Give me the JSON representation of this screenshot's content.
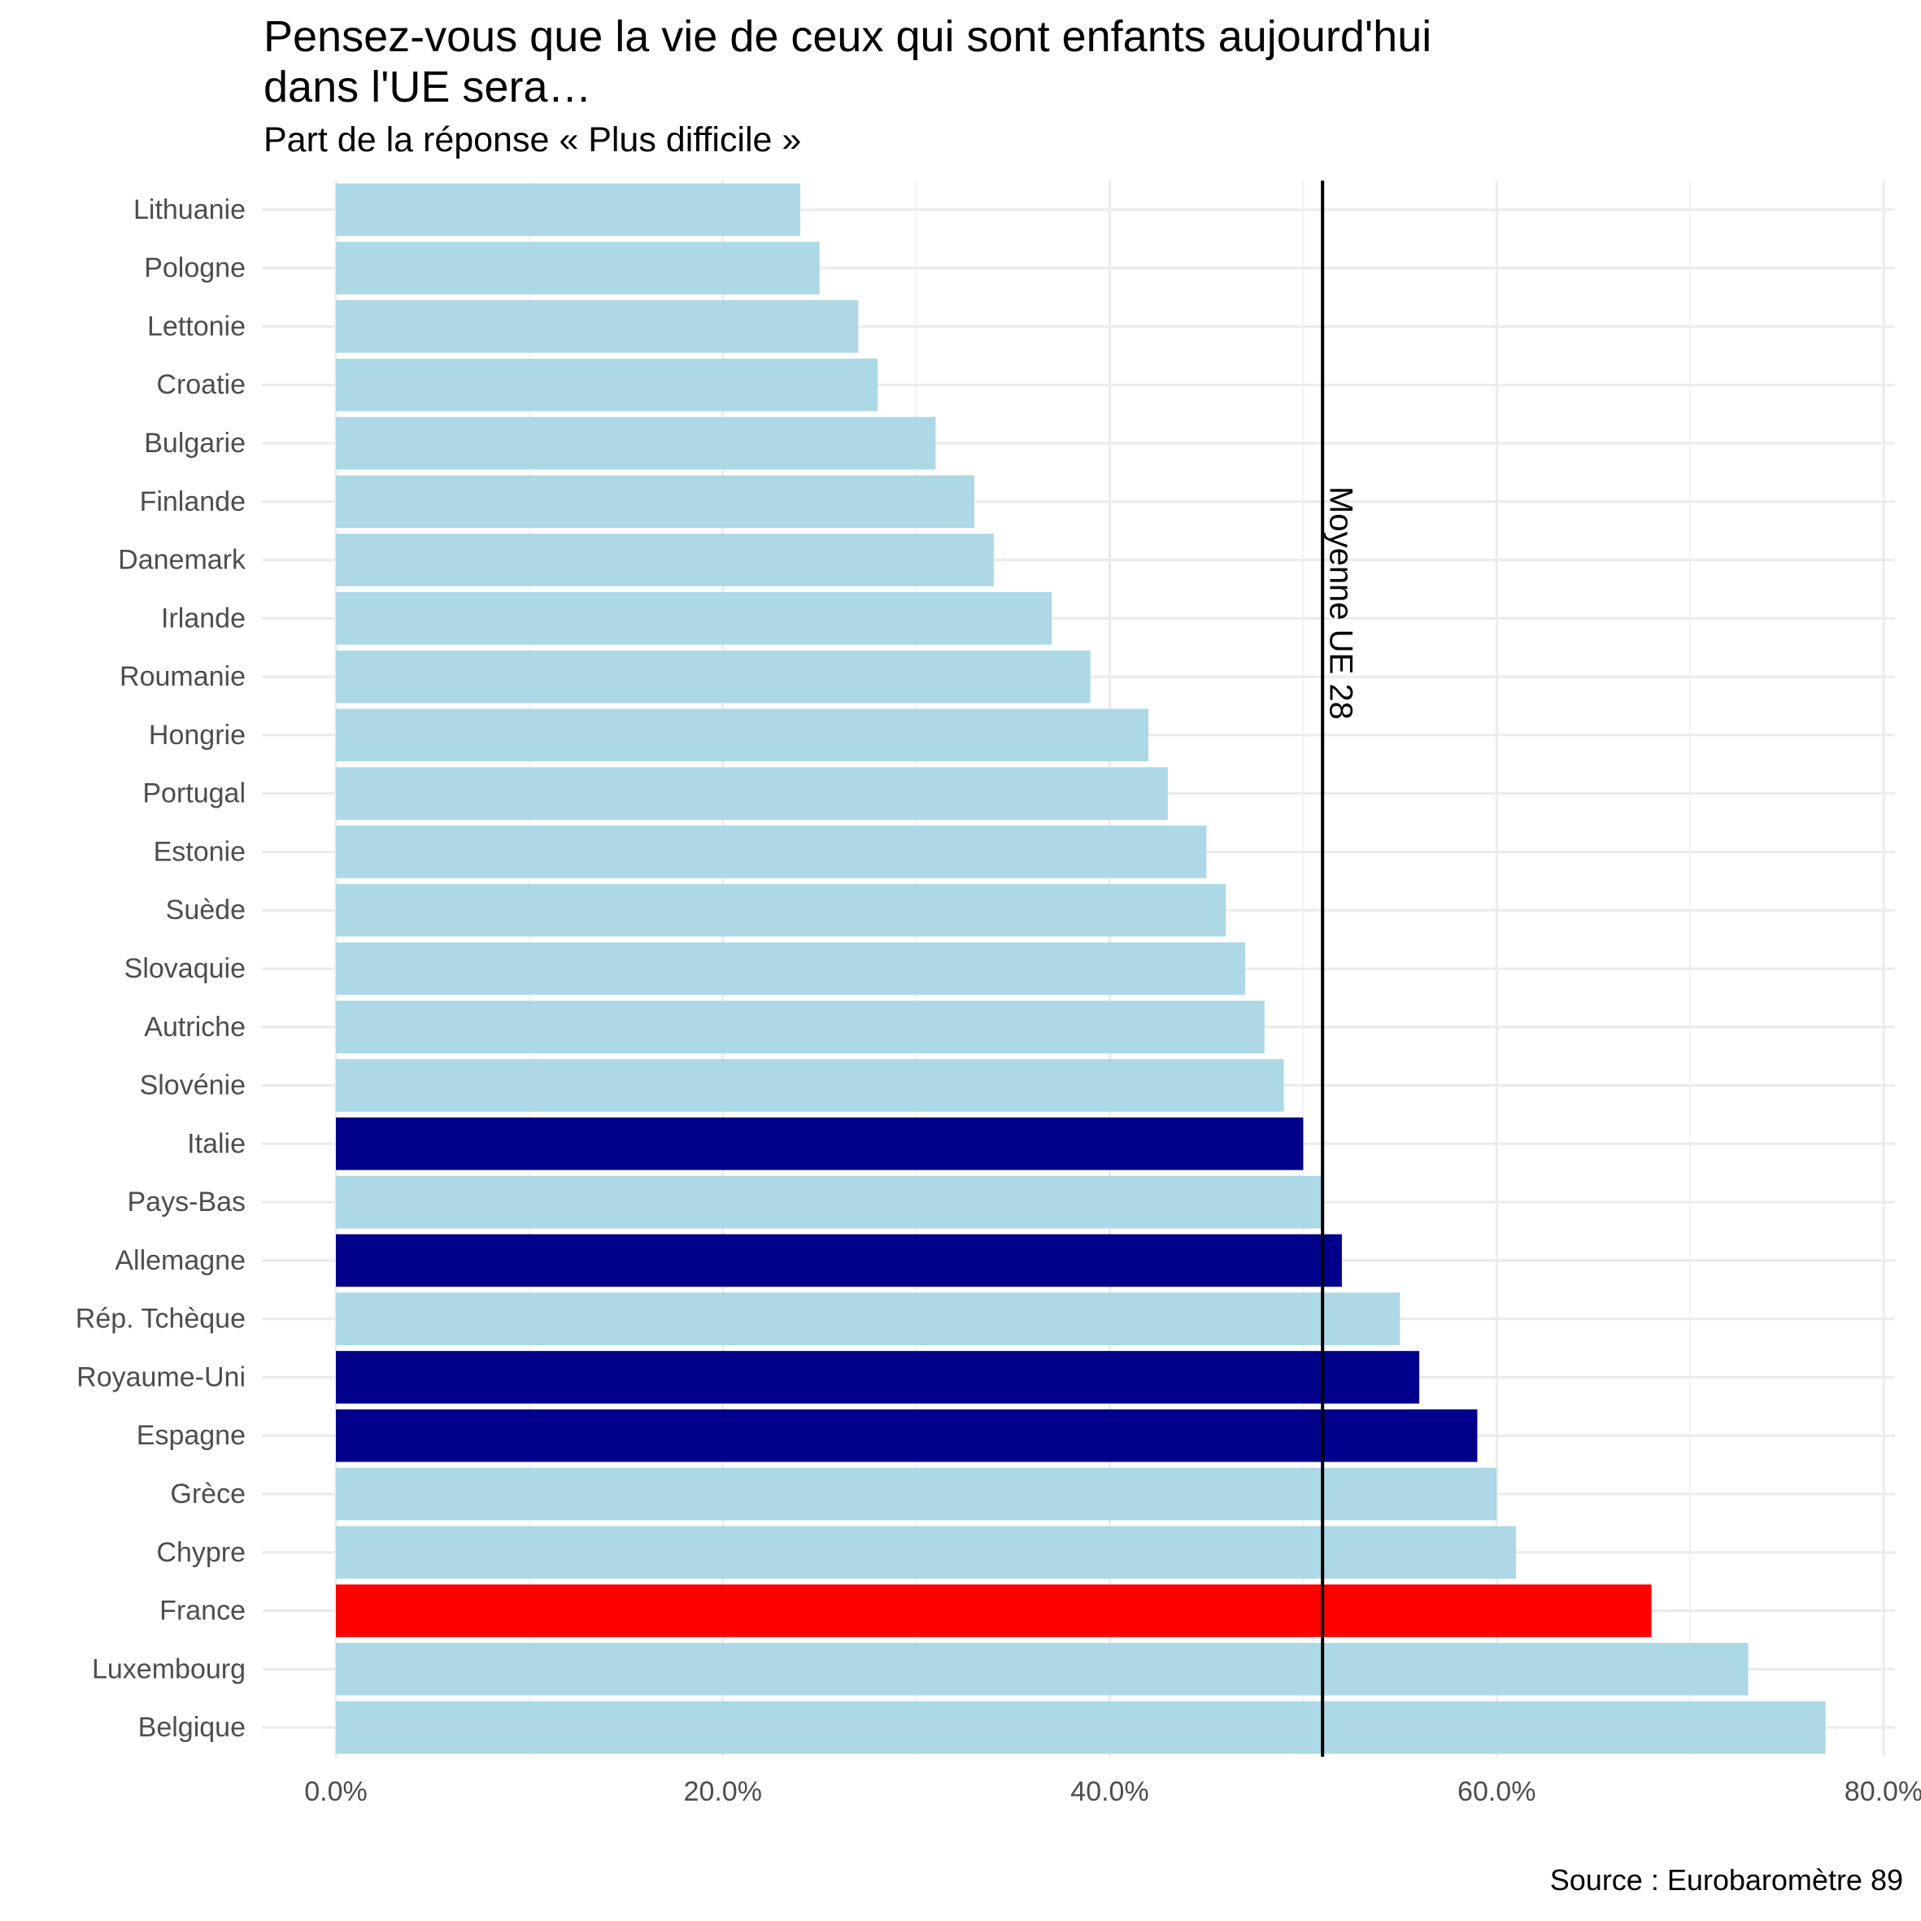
{
  "chart_data": {
    "type": "bar",
    "orientation": "horizontal",
    "title_lines": [
      "Pensez-vous que la vie de ceux qui sont enfants aujourd'hui",
      "dans l'UE sera…"
    ],
    "subtitle": "Part de la réponse « Plus difficile »",
    "source": "Source : Eurobaromètre 89",
    "xlim": [
      0,
      0.8
    ],
    "x_ticks": [
      {
        "value": 0,
        "label": "0.0%"
      },
      {
        "value": 0.2,
        "label": "20.0%"
      },
      {
        "value": 0.4,
        "label": "40.0%"
      },
      {
        "value": 0.6,
        "label": "60.0%"
      },
      {
        "value": 0.8,
        "label": "80.0%"
      }
    ],
    "x_minor_ticks": [
      0.1,
      0.3,
      0.5,
      0.7
    ],
    "grid": true,
    "reference_line": {
      "value": 0.51,
      "label": "Moyenne UE 28",
      "color": "#000000"
    },
    "colors": {
      "default": "#add8e6",
      "highlight": "#00008b",
      "france": "#ff0000"
    },
    "bars": [
      {
        "label": "Lithuanie",
        "value": 0.24,
        "color": "#add8e6"
      },
      {
        "label": "Pologne",
        "value": 0.25,
        "color": "#add8e6"
      },
      {
        "label": "Lettonie",
        "value": 0.27,
        "color": "#add8e6"
      },
      {
        "label": "Croatie",
        "value": 0.28,
        "color": "#add8e6"
      },
      {
        "label": "Bulgarie",
        "value": 0.31,
        "color": "#add8e6"
      },
      {
        "label": "Finlande",
        "value": 0.33,
        "color": "#add8e6"
      },
      {
        "label": "Danemark",
        "value": 0.34,
        "color": "#add8e6"
      },
      {
        "label": "Irlande",
        "value": 0.37,
        "color": "#add8e6"
      },
      {
        "label": "Roumanie",
        "value": 0.39,
        "color": "#add8e6"
      },
      {
        "label": "Hongrie",
        "value": 0.42,
        "color": "#add8e6"
      },
      {
        "label": "Portugal",
        "value": 0.43,
        "color": "#add8e6"
      },
      {
        "label": "Estonie",
        "value": 0.45,
        "color": "#add8e6"
      },
      {
        "label": "Suède",
        "value": 0.46,
        "color": "#add8e6"
      },
      {
        "label": "Slovaquie",
        "value": 0.47,
        "color": "#add8e6"
      },
      {
        "label": "Autriche",
        "value": 0.48,
        "color": "#add8e6"
      },
      {
        "label": "Slovénie",
        "value": 0.49,
        "color": "#add8e6"
      },
      {
        "label": "Italie",
        "value": 0.5,
        "color": "#00008b"
      },
      {
        "label": "Pays-Bas",
        "value": 0.51,
        "color": "#add8e6"
      },
      {
        "label": "Allemagne",
        "value": 0.52,
        "color": "#00008b"
      },
      {
        "label": "Rép. Tchèque",
        "value": 0.55,
        "color": "#add8e6"
      },
      {
        "label": "Royaume-Uni",
        "value": 0.56,
        "color": "#00008b"
      },
      {
        "label": "Espagne",
        "value": 0.59,
        "color": "#00008b"
      },
      {
        "label": "Grèce",
        "value": 0.6,
        "color": "#add8e6"
      },
      {
        "label": "Chypre",
        "value": 0.61,
        "color": "#add8e6"
      },
      {
        "label": "France",
        "value": 0.68,
        "color": "#ff0000"
      },
      {
        "label": "Luxembourg",
        "value": 0.73,
        "color": "#add8e6"
      },
      {
        "label": "Belgique",
        "value": 0.77,
        "color": "#add8e6"
      }
    ]
  }
}
